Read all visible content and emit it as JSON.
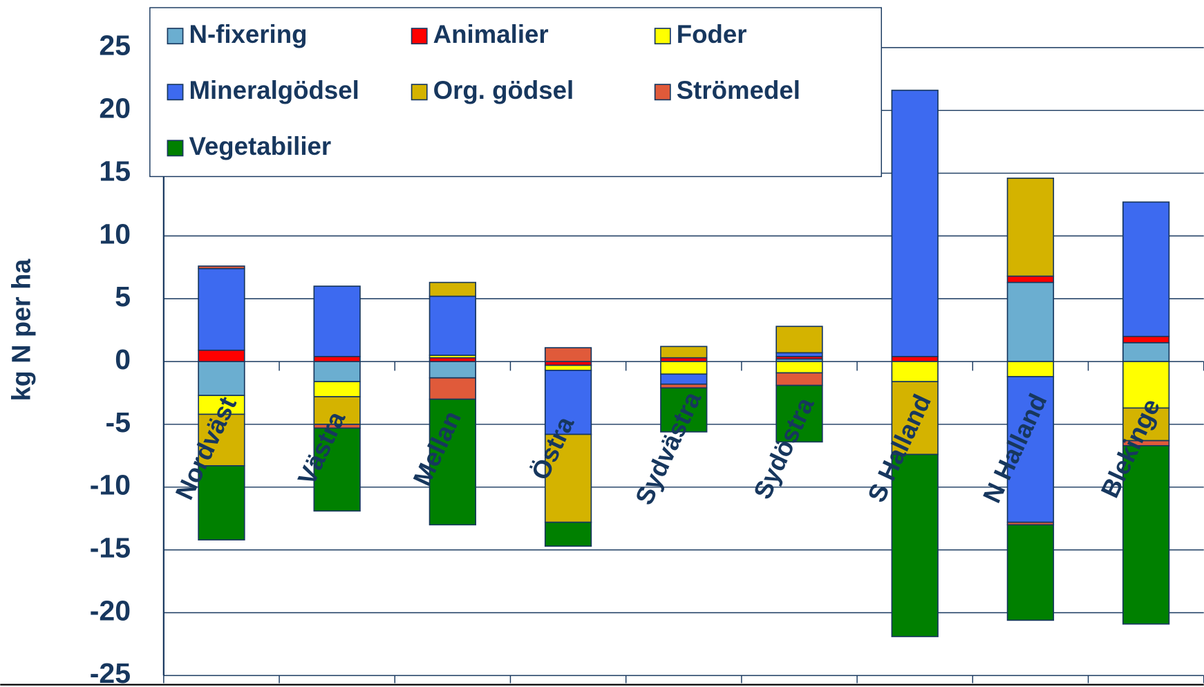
{
  "chart_data": {
    "type": "bar",
    "stacked": true,
    "y_label": "kg N per ha",
    "categories": [
      "Nordväst",
      "Västra",
      "Mellan",
      "Östra",
      "Sydvästra",
      "Sydöstra",
      "S Halland",
      "N Halland",
      "Blekinge"
    ],
    "series": [
      {
        "name": "N-fixering",
        "color": "#6baed0",
        "values": [
          -2.7,
          -1.6,
          -1.3,
          0,
          0,
          0.2,
          0,
          6.3,
          1.5
        ]
      },
      {
        "name": "Animalier",
        "color": "#ff0000",
        "values": [
          0.9,
          0.4,
          0.3,
          -0.3,
          0.3,
          0.2,
          0.4,
          0.5,
          0.5
        ]
      },
      {
        "name": "Foder",
        "color": "#ffff00",
        "values": [
          -1.5,
          -1.2,
          0.2,
          -0.4,
          -1.0,
          -0.9,
          -1.6,
          -1.2,
          -3.7
        ]
      },
      {
        "name": "Mineralgödsel",
        "color": "#3d6af0",
        "values": [
          6.5,
          5.6,
          4.7,
          -5.1,
          -0.8,
          0.3,
          21.2,
          -11.6,
          10.7
        ]
      },
      {
        "name": "Org. gödsel",
        "color": "#d4b300",
        "values": [
          -4.1,
          -2.2,
          1.1,
          -7.0,
          0.9,
          2.1,
          -5.8,
          7.8,
          -2.6
        ]
      },
      {
        "name": "Strömedel",
        "color": "#e05a3a",
        "values": [
          0.2,
          -0.3,
          -1.7,
          1.1,
          -0.3,
          -1.0,
          0,
          -0.2,
          -0.4
        ]
      },
      {
        "name": "Vegetabilier",
        "color": "#008000",
        "values": [
          -5.9,
          -6.6,
          -10.0,
          -1.9,
          -3.5,
          -4.5,
          -14.5,
          -7.6,
          -14.2
        ]
      }
    ],
    "ylim": [
      -25,
      25
    ],
    "yticks": [
      -25,
      -20,
      -15,
      -10,
      -5,
      0,
      5,
      10,
      15,
      20,
      25
    ],
    "grid": true
  }
}
